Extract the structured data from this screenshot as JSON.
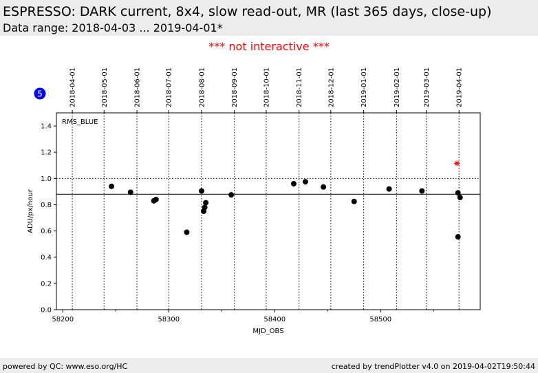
{
  "header": {
    "title": "ESPRESSO: DARK current, 8x4, slow read-out, MR (last 365 days, close-up)",
    "subtitle": "Data range: 2018-04-03 ... 2019-04-01*"
  },
  "notice": "*** not interactive ***",
  "badge": "5",
  "footer": {
    "left": "powered by QC: www.eso.org/HC",
    "right": "created by trendPlotter v4.0 on 2019-04-02T19:50:44"
  },
  "colors": {
    "points": "#000000",
    "highlight": "#ff0000",
    "badge": "#0000ff",
    "header_bg": "#ececec"
  },
  "chart_data": {
    "type": "scatter",
    "panel_label": "RMS_BLUE",
    "xlabel": "MJD_OBS",
    "ylabel": "ADU/px/hour",
    "xlim": [
      58194,
      58594
    ],
    "ylim": [
      0,
      1.5
    ],
    "x_ticks": [
      58200,
      58300,
      58400,
      58500
    ],
    "y_ticks": [
      "0.0",
      "0.2",
      "0.4",
      "0.6",
      "0.8",
      "1.0",
      "1.2",
      "1.4"
    ],
    "date_ticks": [
      {
        "label": "2018-04-01",
        "mjd": 58209
      },
      {
        "label": "2018-05-01",
        "mjd": 58239
      },
      {
        "label": "2018-06-01",
        "mjd": 58270
      },
      {
        "label": "2018-07-01",
        "mjd": 58300
      },
      {
        "label": "2018-08-01",
        "mjd": 58331
      },
      {
        "label": "2018-09-01",
        "mjd": 58362
      },
      {
        "label": "2018-10-01",
        "mjd": 58392
      },
      {
        "label": "2018-11-01",
        "mjd": 58423
      },
      {
        "label": "2018-12-01",
        "mjd": 58453
      },
      {
        "label": "2019-01-01",
        "mjd": 58484
      },
      {
        "label": "2019-02-01",
        "mjd": 58515
      },
      {
        "label": "2019-03-01",
        "mjd": 58543
      },
      {
        "label": "2019-04-01",
        "mjd": 58574
      }
    ],
    "reference_lines": {
      "solid": 0.88,
      "dotted": 1.0
    },
    "points": [
      {
        "x": 58246,
        "y": 0.94
      },
      {
        "x": 58264,
        "y": 0.895
      },
      {
        "x": 58286,
        "y": 0.83
      },
      {
        "x": 58288,
        "y": 0.84
      },
      {
        "x": 58317,
        "y": 0.59
      },
      {
        "x": 58331,
        "y": 0.905
      },
      {
        "x": 58333,
        "y": 0.75
      },
      {
        "x": 58334,
        "y": 0.78
      },
      {
        "x": 58335,
        "y": 0.815
      },
      {
        "x": 58359,
        "y": 0.875
      },
      {
        "x": 58418,
        "y": 0.96
      },
      {
        "x": 58429,
        "y": 0.975
      },
      {
        "x": 58446,
        "y": 0.935
      },
      {
        "x": 58475,
        "y": 0.825
      },
      {
        "x": 58508,
        "y": 0.92
      },
      {
        "x": 58539,
        "y": 0.905
      },
      {
        "x": 58573,
        "y": 0.89
      },
      {
        "x": 58573,
        "y": 0.555
      },
      {
        "x": 58575,
        "y": 0.855
      }
    ],
    "highlight_points": [
      {
        "x": 58572,
        "y": 1.115
      }
    ]
  }
}
